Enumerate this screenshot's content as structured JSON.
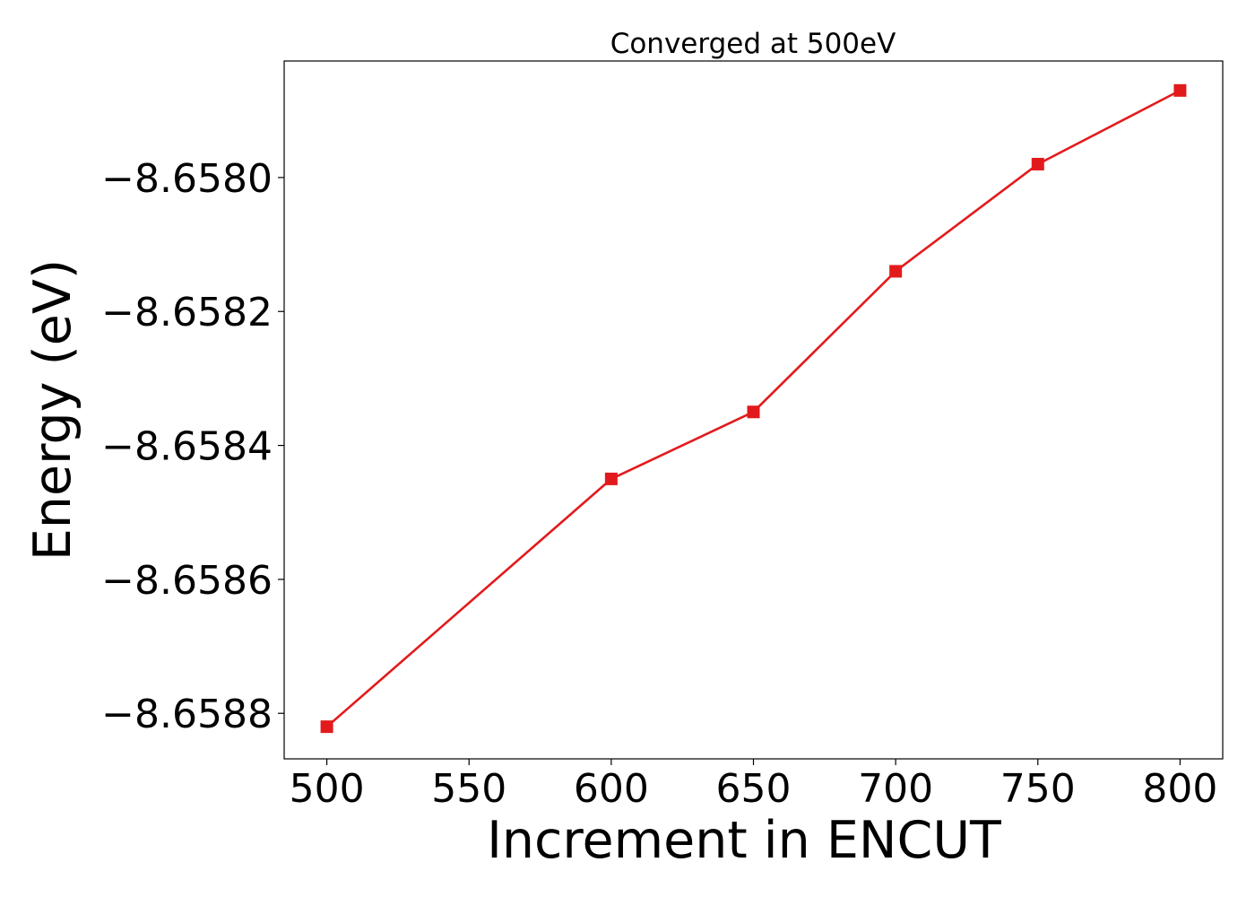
{
  "chart_data": {
    "type": "line",
    "title": "Converged at 500eV",
    "xlabel": "Increment in ENCUT",
    "ylabel": "Energy (eV)",
    "x": [
      500,
      600,
      650,
      700,
      750,
      800
    ],
    "series": [
      {
        "values": [
          -8.65882,
          -8.65845,
          -8.65835,
          -8.65814,
          -8.65798,
          -8.65787
        ],
        "color": "#e31a1c",
        "marker": "square"
      }
    ],
    "xticks": [
      500,
      550,
      600,
      650,
      700,
      750,
      800
    ],
    "xtick_labels": [
      "500",
      "550",
      "600",
      "650",
      "700",
      "750",
      "800"
    ],
    "yticks": [
      -8.658,
      -8.6582,
      -8.6584,
      -8.6586,
      -8.6588
    ],
    "ytick_labels": [
      "−8.6580",
      "−8.6582",
      "−8.6584",
      "−8.6586",
      "−8.6588"
    ],
    "xlim": [
      485,
      815
    ],
    "ylim": [
      -8.658868,
      -8.657826
    ],
    "grid": false,
    "legend": "none"
  }
}
